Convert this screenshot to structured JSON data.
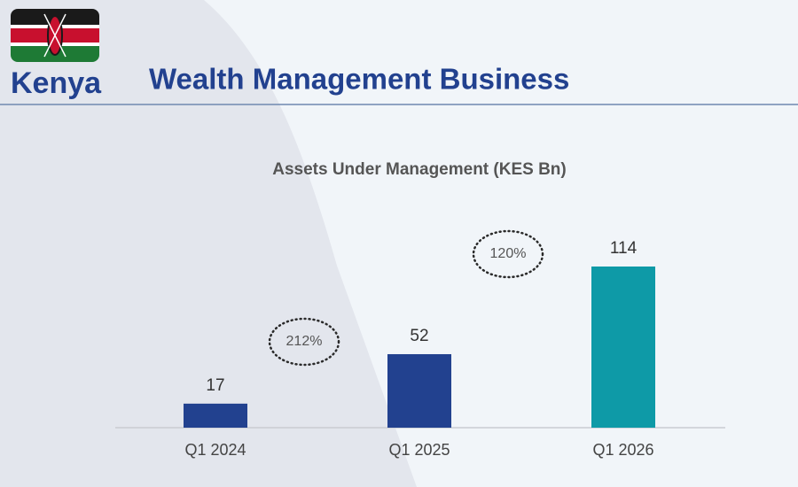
{
  "header": {
    "country": "Kenya",
    "title": "Wealth Management Business"
  },
  "chart_data": {
    "type": "bar",
    "title": "Assets Under Management (KES Bn)",
    "categories": [
      "Q1 2024",
      "Q1 2025",
      "Q1 2026"
    ],
    "values": [
      17,
      52,
      114
    ],
    "colors": [
      "#22418f",
      "#22418f",
      "#0e9aa7"
    ],
    "annotations": [
      "212%",
      "120%"
    ]
  }
}
